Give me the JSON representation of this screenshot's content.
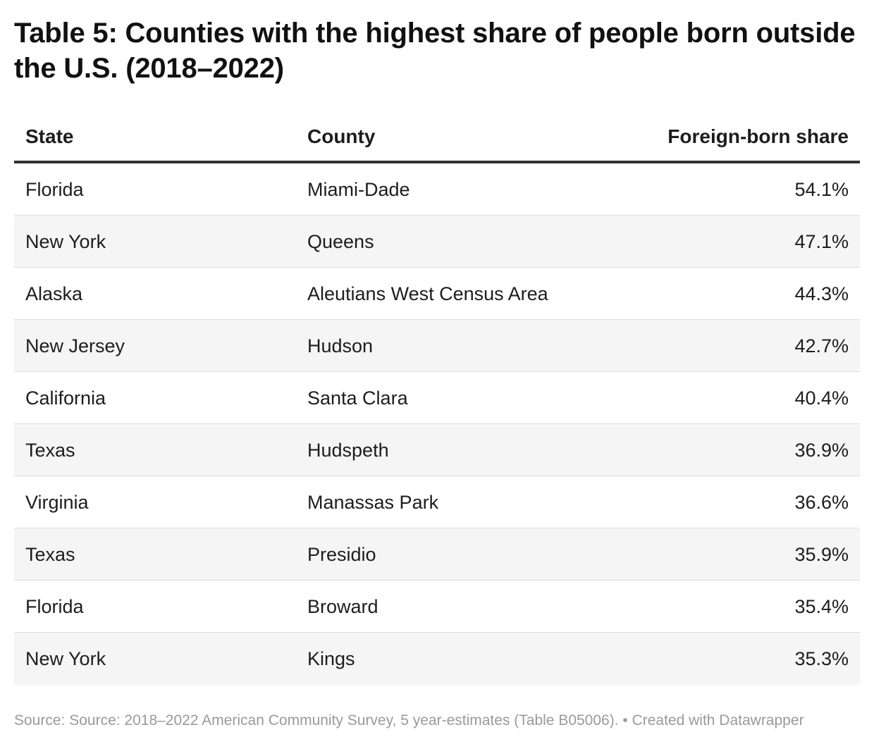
{
  "title": "Table 5: Counties with the highest share of people born outside the U.S. (2018–2022)",
  "chart_data": {
    "type": "table",
    "title": "Table 5: Counties with the highest share of people born outside the U.S. (2018–2022)",
    "columns": [
      "State",
      "County",
      "Foreign-born share"
    ],
    "rows": [
      {
        "state": "Florida",
        "county": "Miami-Dade",
        "share": "54.1%"
      },
      {
        "state": "New York",
        "county": "Queens",
        "share": "47.1%"
      },
      {
        "state": "Alaska",
        "county": "Aleutians West Census Area",
        "share": "44.3%"
      },
      {
        "state": "New Jersey",
        "county": "Hudson",
        "share": "42.7%"
      },
      {
        "state": "California",
        "county": "Santa Clara",
        "share": "40.4%"
      },
      {
        "state": "Texas",
        "county": "Hudspeth",
        "share": "36.9%"
      },
      {
        "state": "Virginia",
        "county": "Manassas Park",
        "share": "36.6%"
      },
      {
        "state": "Texas",
        "county": "Presidio",
        "share": "35.9%"
      },
      {
        "state": "Florida",
        "county": "Broward",
        "share": "35.4%"
      },
      {
        "state": "New York",
        "county": "Kings",
        "share": "35.3%"
      }
    ]
  },
  "footer": {
    "text": "Source: Source: 2018–2022 American Community Survey, 5 year-estimates (Table B05006). • Created with Datawrapper"
  },
  "colors": {
    "text": "#1d1d1d",
    "header_rule": "#333333",
    "row_divider": "#dcdcdc",
    "alt_row": "#f5f5f5",
    "footer_text": "#9a9a9a"
  }
}
